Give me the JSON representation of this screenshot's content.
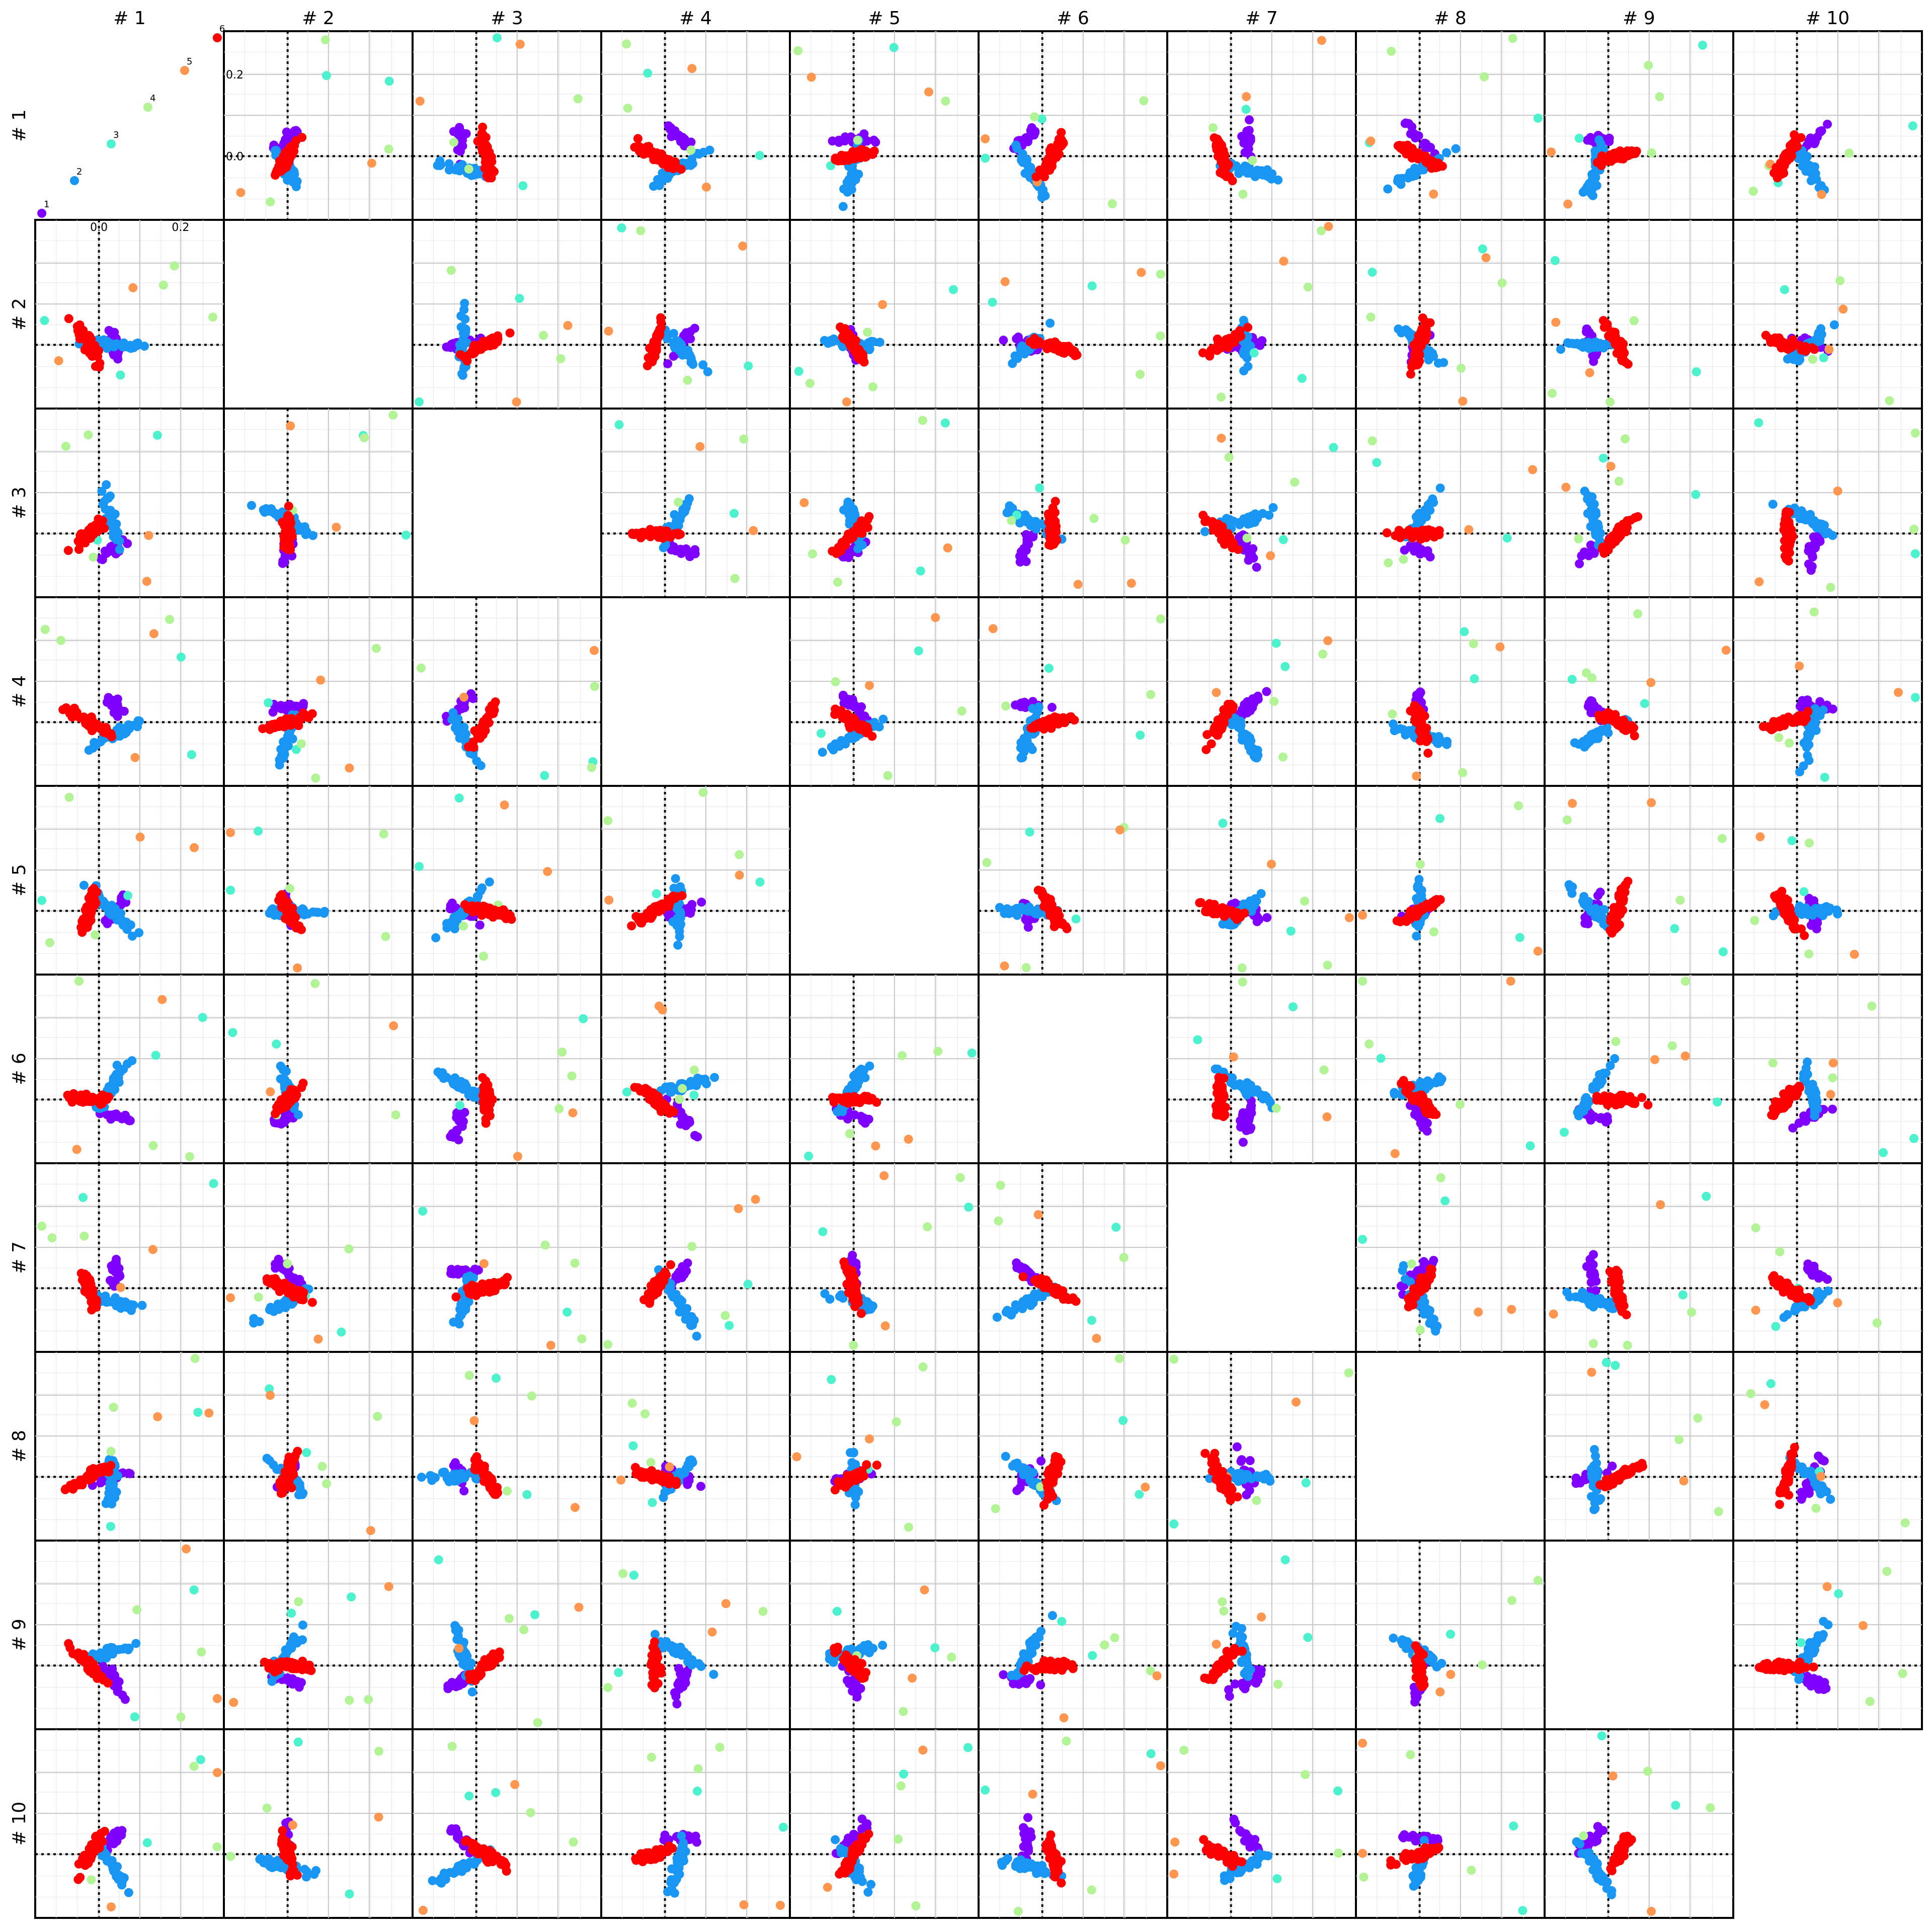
{
  "chart_data": {
    "type": "scatter",
    "title": "",
    "grid": true,
    "column_labels": [
      "# 1",
      "# 2",
      "# 3",
      "# 4",
      "# 5",
      "# 6",
      "# 7",
      "# 8",
      "# 9",
      "# 10"
    ],
    "row_labels": [
      "# 1",
      "# 2",
      "# 3",
      "# 4",
      "# 5",
      "# 6",
      "# 7",
      "# 8",
      "# 9",
      "# 10"
    ],
    "axis_range": [
      -0.15,
      0.3
    ],
    "tick_labels": [
      "0.0",
      "0.2"
    ],
    "tick_values": [
      0.0,
      0.2
    ],
    "reference_lines": {
      "x": 0.0,
      "y": 0.0,
      "style": "dotted"
    },
    "legend_panel": {
      "position": "top-left",
      "points": [
        {
          "label": "1",
          "x": -0.14,
          "y": -0.14,
          "color": "#8000ff"
        },
        {
          "label": "2",
          "x": -0.06,
          "y": -0.06,
          "color": "#1996f3"
        },
        {
          "label": "3",
          "x": 0.03,
          "y": 0.03,
          "color": "#4cf2ce"
        },
        {
          "label": "4",
          "x": 0.12,
          "y": 0.12,
          "color": "#b2f396"
        },
        {
          "label": "5",
          "x": 0.21,
          "y": 0.21,
          "color": "#ff964f"
        },
        {
          "label": "6",
          "x": 0.29,
          "y": 0.29,
          "color": "#ff0000"
        }
      ]
    },
    "series": [
      {
        "color": "#8000ff",
        "count": 20
      },
      {
        "color": "#1996f3",
        "count": 35
      },
      {
        "color": "#4cf2ce",
        "count": 2
      },
      {
        "color": "#b2f396",
        "count": 3
      },
      {
        "color": "#ff964f",
        "count": 2
      },
      {
        "color": "#ff0000",
        "count": 48
      }
    ],
    "diagonal_empty": true,
    "last_cell_empty": true
  }
}
